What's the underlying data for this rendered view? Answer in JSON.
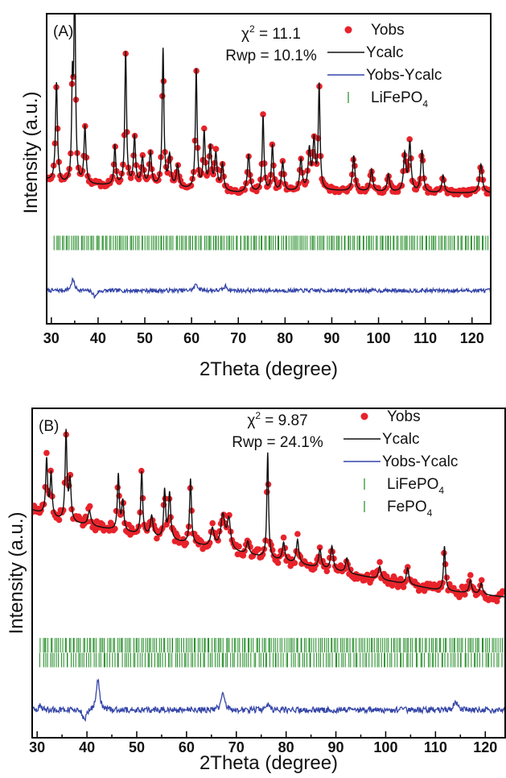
{
  "chart_data": [
    {
      "type": "line",
      "panel_label": "(A)",
      "ylabel": "Intensity (a.u.)",
      "xlabel": "2Theta (degree)",
      "xlim": [
        29,
        124
      ],
      "x_ticks": [
        30,
        40,
        50,
        60,
        70,
        80,
        90,
        100,
        110,
        120
      ],
      "stats": {
        "chi2_prefix": "χ",
        "chi2_sup": "2",
        "chi2_value": " = 11.1",
        "rwp": "Rwp = 10.1%"
      },
      "legend": {
        "position": "top-right",
        "items": [
          {
            "key": "yobs",
            "label": "Yobs",
            "sub": "",
            "marker": "dot",
            "color": "#e8222a"
          },
          {
            "key": "ycalc",
            "label": "Ycalc",
            "sub": "",
            "marker": "line",
            "color": "#111111"
          },
          {
            "key": "diff",
            "label": "Yobs-Ycalc",
            "sub": "",
            "marker": "line",
            "color": "#3445a8"
          },
          {
            "key": "ref1",
            "label": "LiFePO",
            "sub": "4",
            "marker": "tick",
            "color": "#1e8a22"
          }
        ]
      },
      "baseline": {
        "points": [
          [
            29,
            0.3
          ],
          [
            32,
            0.28
          ],
          [
            50,
            0.27
          ],
          [
            70,
            0.24
          ],
          [
            90,
            0.25
          ],
          [
            110,
            0.24
          ],
          [
            124,
            0.24
          ]
        ]
      },
      "peaks": [
        [
          31.1,
          0.45,
          0.25
        ],
        [
          34.5,
          0.42,
          0.18
        ],
        [
          35.0,
          0.96,
          0.2
        ],
        [
          37.2,
          0.26,
          0.25
        ],
        [
          43.6,
          0.18,
          0.22
        ],
        [
          45.9,
          0.6,
          0.22
        ],
        [
          47.8,
          0.22,
          0.25
        ],
        [
          49.5,
          0.12,
          0.3
        ],
        [
          51.2,
          0.15,
          0.3
        ],
        [
          53.9,
          0.62,
          0.22
        ],
        [
          55.3,
          0.14,
          0.3
        ],
        [
          57.0,
          0.1,
          0.3
        ],
        [
          61.0,
          0.54,
          0.22
        ],
        [
          62.7,
          0.25,
          0.25
        ],
        [
          64.0,
          0.19,
          0.3
        ],
        [
          65.2,
          0.16,
          0.3
        ],
        [
          66.6,
          0.12,
          0.3
        ],
        [
          72.2,
          0.17,
          0.3
        ],
        [
          75.3,
          0.34,
          0.22
        ],
        [
          77.3,
          0.21,
          0.25
        ],
        [
          79.5,
          0.13,
          0.3
        ],
        [
          83.4,
          0.14,
          0.3
        ],
        [
          85.2,
          0.18,
          0.3
        ],
        [
          86.2,
          0.22,
          0.3
        ],
        [
          87.3,
          0.47,
          0.22
        ],
        [
          94.7,
          0.16,
          0.3
        ],
        [
          98.5,
          0.1,
          0.3
        ],
        [
          102.1,
          0.08,
          0.3
        ],
        [
          105.6,
          0.17,
          0.3
        ],
        [
          106.7,
          0.22,
          0.3
        ],
        [
          109.3,
          0.19,
          0.3
        ],
        [
          113.8,
          0.08,
          0.3
        ],
        [
          121.9,
          0.13,
          0.35
        ]
      ],
      "reflection_series": [
        {
          "range": [
            30.5,
            123.5
          ],
          "count": 230,
          "color": "#1e8a22"
        }
      ],
      "diff_features": [
        [
          34.6,
          0.05
        ],
        [
          61.0,
          0.03
        ],
        [
          39.3,
          -0.03
        ],
        [
          67.3,
          0.02
        ]
      ]
    },
    {
      "type": "line",
      "panel_label": "(B)",
      "ylabel": "Intensity (a.u.)",
      "xlabel": "2Theta (degree)",
      "xlim": [
        29,
        124
      ],
      "x_ticks": [
        30,
        40,
        50,
        60,
        70,
        80,
        90,
        100,
        110,
        120
      ],
      "stats": {
        "chi2_prefix": "χ",
        "chi2_sup": "2",
        "chi2_value": " = 9.87",
        "rwp": "Rwp = 24.1%"
      },
      "legend": {
        "position": "top-right",
        "items": [
          {
            "key": "yobs",
            "label": "Yobs",
            "sub": "",
            "marker": "dot",
            "color": "#e8222a"
          },
          {
            "key": "ycalc",
            "label": "Ycalc",
            "sub": "",
            "marker": "line",
            "color": "#111111"
          },
          {
            "key": "diff",
            "label": "Yobs-Ycalc",
            "sub": "",
            "marker": "line",
            "color": "#3445a8"
          },
          {
            "key": "ref1",
            "label": "LiFePO",
            "sub": "4",
            "marker": "tick",
            "color": "#1e8a22"
          },
          {
            "key": "ref2",
            "label": "FePO",
            "sub": "4",
            "marker": "tick",
            "color": "#1e8a22"
          }
        ]
      },
      "baseline": {
        "points": [
          [
            29,
            0.81
          ],
          [
            35,
            0.75
          ],
          [
            50,
            0.68
          ],
          [
            70,
            0.58
          ],
          [
            90,
            0.48
          ],
          [
            110,
            0.38
          ],
          [
            124,
            0.34
          ]
        ]
      },
      "peaks": [
        [
          31.9,
          0.3,
          0.22
        ],
        [
          32.8,
          0.23,
          0.22
        ],
        [
          35.8,
          0.48,
          0.22
        ],
        [
          36.6,
          0.22,
          0.25
        ],
        [
          40.5,
          0.08,
          0.35
        ],
        [
          46.3,
          0.3,
          0.22
        ],
        [
          47.2,
          0.16,
          0.25
        ],
        [
          51.0,
          0.34,
          0.22
        ],
        [
          53.0,
          0.11,
          0.3
        ],
        [
          55.6,
          0.26,
          0.22
        ],
        [
          56.6,
          0.25,
          0.25
        ],
        [
          60.8,
          0.35,
          0.22
        ],
        [
          65.2,
          0.1,
          0.4
        ],
        [
          67.3,
          0.18,
          0.5
        ],
        [
          68.5,
          0.16,
          0.4
        ],
        [
          72.3,
          0.07,
          0.3
        ],
        [
          76.3,
          0.57,
          0.2
        ],
        [
          79.5,
          0.1,
          0.3
        ],
        [
          82.3,
          0.13,
          0.3
        ],
        [
          86.8,
          0.1,
          0.3
        ],
        [
          89.2,
          0.13,
          0.3
        ],
        [
          92.2,
          0.08,
          0.3
        ],
        [
          98.8,
          0.07,
          0.3
        ],
        [
          104.4,
          0.09,
          0.3
        ],
        [
          111.8,
          0.24,
          0.22
        ],
        [
          117.0,
          0.07,
          0.3
        ],
        [
          119.2,
          0.06,
          0.3
        ]
      ],
      "reflection_series": [
        {
          "range": [
            30.5,
            123.5
          ],
          "count": 230,
          "color": "#1e8a22"
        },
        {
          "range": [
            30.5,
            123.5
          ],
          "count": 200,
          "color": "#1e8a22"
        }
      ],
      "diff_features": [
        [
          42.2,
          0.16
        ],
        [
          39.5,
          -0.06
        ],
        [
          67.3,
          0.09
        ],
        [
          76.2,
          0.03
        ],
        [
          114.0,
          0.05
        ],
        [
          30.5,
          0.02
        ]
      ]
    }
  ]
}
